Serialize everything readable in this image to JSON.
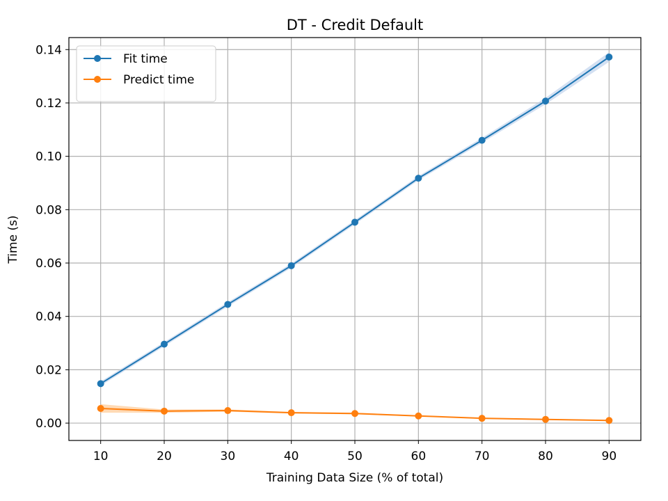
{
  "chart_data": {
    "type": "line",
    "title": "DT - Credit Default",
    "xlabel": "Training Data Size (% of total)",
    "ylabel": "Time (s)",
    "x": [
      10,
      20,
      30,
      40,
      50,
      60,
      70,
      80,
      90
    ],
    "xlim": [
      5,
      95
    ],
    "ylim": [
      -0.0065,
      0.1445
    ],
    "xticks": [
      10,
      20,
      30,
      40,
      50,
      60,
      70,
      80,
      90
    ],
    "yticks": [
      0.0,
      0.02,
      0.04,
      0.06,
      0.08,
      0.1,
      0.12,
      0.14
    ],
    "ytick_labels": [
      "0.00",
      "0.02",
      "0.04",
      "0.06",
      "0.08",
      "0.10",
      "0.12",
      "0.14"
    ],
    "grid": true,
    "legend_position": "top-left",
    "series": [
      {
        "name": "Fit time",
        "color": "#1f77b4",
        "band_color": "#aec7e8",
        "values": [
          0.0148,
          0.0296,
          0.0445,
          0.059,
          0.0753,
          0.0918,
          0.106,
          0.1207,
          0.1372
        ],
        "band": [
          0.0008,
          0.0008,
          0.0008,
          0.0008,
          0.0008,
          0.0008,
          0.0009,
          0.0012,
          0.0018
        ]
      },
      {
        "name": "Predict time",
        "color": "#ff7f0e",
        "band_color": "#ffbb78",
        "values": [
          0.0055,
          0.0045,
          0.0047,
          0.0039,
          0.0036,
          0.0027,
          0.0018,
          0.0014,
          0.001
        ],
        "band": [
          0.0016,
          0.0006,
          0.0004,
          0.0003,
          0.0003,
          0.0002,
          0.0002,
          0.0002,
          0.0002
        ]
      }
    ]
  }
}
